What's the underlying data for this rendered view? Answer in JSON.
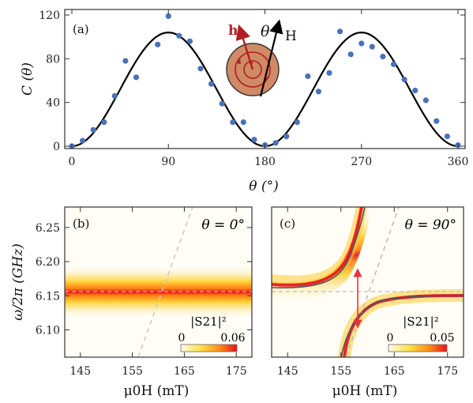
{
  "chart_data": [
    {
      "panel": "(a)",
      "type": "scatter",
      "xlabel": "θ (°)",
      "ylabel": "C (θ)",
      "xlim": [
        0,
        360
      ],
      "ylim": [
        0,
        120
      ],
      "xticks": [
        0,
        90,
        180,
        270,
        360
      ],
      "yticks": [
        0,
        40,
        80,
        120
      ],
      "points": [
        [
          0,
          0
        ],
        [
          10,
          5
        ],
        [
          20,
          15
        ],
        [
          30,
          22
        ],
        [
          40,
          46
        ],
        [
          50,
          78
        ],
        [
          60,
          63
        ],
        [
          80,
          93
        ],
        [
          90,
          119
        ],
        [
          100,
          101
        ],
        [
          110,
          96
        ],
        [
          120,
          71
        ],
        [
          130,
          57
        ],
        [
          140,
          39
        ],
        [
          150,
          22
        ],
        [
          160,
          22
        ],
        [
          170,
          6
        ],
        [
          180,
          1
        ],
        [
          190,
          3
        ],
        [
          200,
          9
        ],
        [
          210,
          22
        ],
        [
          220,
          64
        ],
        [
          230,
          50
        ],
        [
          240,
          67
        ],
        [
          250,
          105
        ],
        [
          260,
          84
        ],
        [
          270,
          94
        ],
        [
          280,
          91
        ],
        [
          290,
          82
        ],
        [
          300,
          75
        ],
        [
          310,
          61
        ],
        [
          320,
          51
        ],
        [
          330,
          42
        ],
        [
          340,
          23
        ],
        [
          350,
          9
        ],
        [
          360,
          1
        ]
      ],
      "fit": {
        "amplitude": 104,
        "form": "sin^2"
      },
      "inset": {
        "h_label": "h",
        "theta_label": "θ",
        "H_label": "H"
      },
      "colors": {
        "points": "#4a72b8",
        "fit": "#000000"
      }
    },
    {
      "panel": "(b)",
      "type": "heatmap",
      "title": "θ = 0°",
      "xlabel": "μ0H (mT)",
      "ylabel": "ω/2π (GHz)",
      "xlim": [
        142,
        178
      ],
      "ylim": [
        6.06,
        6.28
      ],
      "xticks": [
        145,
        155,
        165,
        175
      ],
      "yticks": [
        6.1,
        6.15,
        6.2,
        6.25
      ],
      "resonance": 6.155,
      "colorbar": {
        "label": "|S21|²",
        "min": "0",
        "max": "0.06"
      }
    },
    {
      "panel": "(c)",
      "type": "heatmap",
      "title": "θ = 90°",
      "xlabel": "μ0H (mT)",
      "xlim": [
        142,
        178
      ],
      "ylim": [
        6.06,
        6.28
      ],
      "xticks": [
        145,
        155,
        165,
        175
      ],
      "resonance": 6.155,
      "colorbar": {
        "label": "|S21|²",
        "min": "0",
        "max": "0.05"
      }
    }
  ]
}
